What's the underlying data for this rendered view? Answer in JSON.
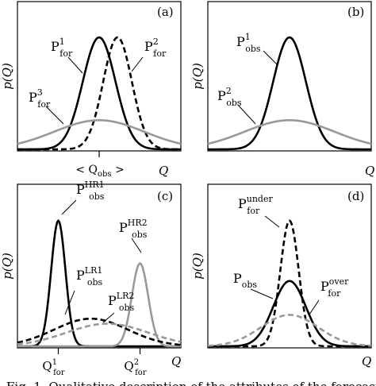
{
  "caption": "Fig. 1. Qualitative description of the attributes of the forecast",
  "chart_data": [
    {
      "type": "line",
      "panel_label": "(a)",
      "ylabel": "p(Q)",
      "xlabel": "Q",
      "x_tick_label": "< Q",
      "x_tick_sub": "obs",
      "x_tick_suffix": " >",
      "xlim": [
        -4,
        4
      ],
      "ylim": [
        0,
        1.05
      ],
      "series": [
        {
          "name": "P",
          "sup": "1",
          "sub": "for",
          "mu": 0,
          "sigma": 0.8,
          "amp": 1.0,
          "style": "solid",
          "color": "#000000"
        },
        {
          "name": "P",
          "sup": "2",
          "sub": "for",
          "mu": 0.9,
          "sigma": 0.7,
          "amp": 1.0,
          "style": "dashed",
          "color": "#000000"
        },
        {
          "name": "P",
          "sup": "3",
          "sub": "for",
          "mu": 0,
          "sigma": 2.2,
          "amp": 0.26,
          "style": "solid",
          "color": "#999999"
        }
      ]
    },
    {
      "type": "line",
      "panel_label": "(b)",
      "ylabel": "p(Q)",
      "xlabel": "Q",
      "xlim": [
        -4,
        4
      ],
      "ylim": [
        0,
        1.05
      ],
      "series": [
        {
          "name": "P",
          "sup": "1",
          "sub": "obs",
          "mu": 0,
          "sigma": 0.8,
          "amp": 1.0,
          "style": "solid",
          "color": "#000000"
        },
        {
          "name": "P",
          "sup": "2",
          "sub": "obs",
          "mu": 0,
          "sigma": 2.2,
          "amp": 0.26,
          "style": "solid",
          "color": "#999999"
        }
      ]
    },
    {
      "type": "line",
      "panel_label": "(c)",
      "ylabel": "p(Q)",
      "xlabel": "Q",
      "x_ticks": [
        {
          "x": -2.0,
          "label": "Q",
          "sup": "1",
          "sub": "for"
        },
        {
          "x": 2.0,
          "label": "Q",
          "sup": "2",
          "sub": "for"
        }
      ],
      "xlim": [
        -4,
        4
      ],
      "ylim": [
        0,
        1.05
      ],
      "series": [
        {
          "name": "P",
          "sup": "HR1",
          "sub": "obs",
          "mu": -2.0,
          "sigma": 0.35,
          "amp": 1.0,
          "style": "solid",
          "color": "#000000"
        },
        {
          "name": "P",
          "sup": "HR2",
          "sub": "obs",
          "mu": 2.0,
          "sigma": 0.4,
          "amp": 0.66,
          "style": "solid",
          "color": "#999999"
        },
        {
          "name": "P",
          "sup": "LR1",
          "sub": "obs",
          "mu": -0.4,
          "sigma": 1.8,
          "amp": 0.22,
          "style": "dashed",
          "color": "#000000"
        },
        {
          "name": "P",
          "sup": "LR2",
          "sub": "obs",
          "mu": 0.4,
          "sigma": 2.0,
          "amp": 0.18,
          "style": "dashed",
          "color": "#999999"
        }
      ]
    },
    {
      "type": "line",
      "panel_label": "(d)",
      "ylabel": "p(Q)",
      "xlabel": "Q",
      "xlim": [
        -4,
        4
      ],
      "ylim": [
        0,
        1.05
      ],
      "series": [
        {
          "name": "P",
          "sup": "under",
          "sub": "for",
          "mu": 0,
          "sigma": 0.45,
          "amp": 1.0,
          "style": "dashed",
          "color": "#000000"
        },
        {
          "name": "P",
          "sup": "",
          "sub": "obs",
          "mu": 0,
          "sigma": 0.8,
          "amp": 0.52,
          "style": "solid",
          "color": "#000000"
        },
        {
          "name": "P",
          "sup": "over",
          "sub": "for",
          "mu": 0,
          "sigma": 1.4,
          "amp": 0.25,
          "style": "dashed",
          "color": "#999999"
        }
      ]
    }
  ]
}
